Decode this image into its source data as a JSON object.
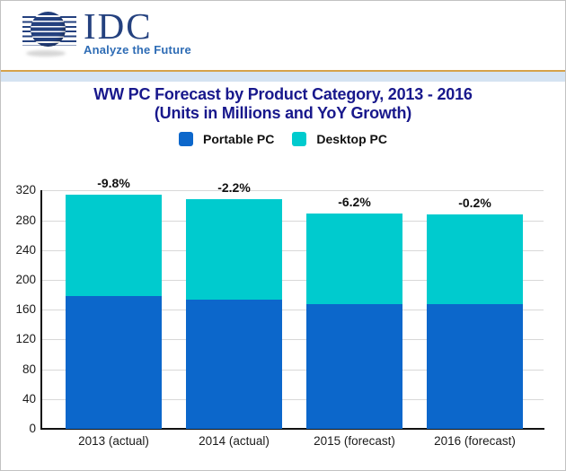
{
  "header": {
    "brand": "IDC",
    "tagline": "Analyze the Future"
  },
  "title": {
    "line1": "WW PC Forecast by Product Category, 2013 - 2016",
    "line2": "(Units in Millions and YoY Growth)"
  },
  "legend": {
    "items": [
      {
        "label": "Portable PC",
        "color": "#0C67CB"
      },
      {
        "label": "Desktop PC",
        "color": "#00CBCE"
      }
    ]
  },
  "chart_data": {
    "type": "bar",
    "stacked": true,
    "title": "WW PC Forecast by Product Category, 2013 - 2016 (Units in Millions and YoY Growth)",
    "categories": [
      "2013 (actual)",
      "2014 (actual)",
      "2015 (forecast)",
      "2016 (forecast)"
    ],
    "series": [
      {
        "name": "Portable PC",
        "color": "#0C67CB",
        "values": [
          178,
          174,
          167,
          167
        ]
      },
      {
        "name": "Desktop PC",
        "color": "#00CBCE",
        "values": [
          137,
          134,
          122,
          121
        ]
      }
    ],
    "totals": [
      315,
      308,
      289,
      288
    ],
    "yoy_growth_labels": [
      "-9.8%",
      "-2.2%",
      "-6.2%",
      "-0.2%"
    ],
    "yticks": [
      0,
      40,
      80,
      120,
      160,
      200,
      240,
      280,
      320
    ],
    "ylim": [
      0,
      320
    ],
    "xlabel": "",
    "ylabel": "",
    "grid": true,
    "legend_position": "top"
  },
  "theme": {
    "title_color": "#18188C",
    "brand_navy": "#24417F",
    "tagline_blue": "#2E6CB5",
    "gold_rule": "#D6A24A",
    "blue_strip": "#D5E3F2",
    "gridline": "#D8D8D8",
    "axis": "#111111",
    "background": "#FFFFFF"
  }
}
